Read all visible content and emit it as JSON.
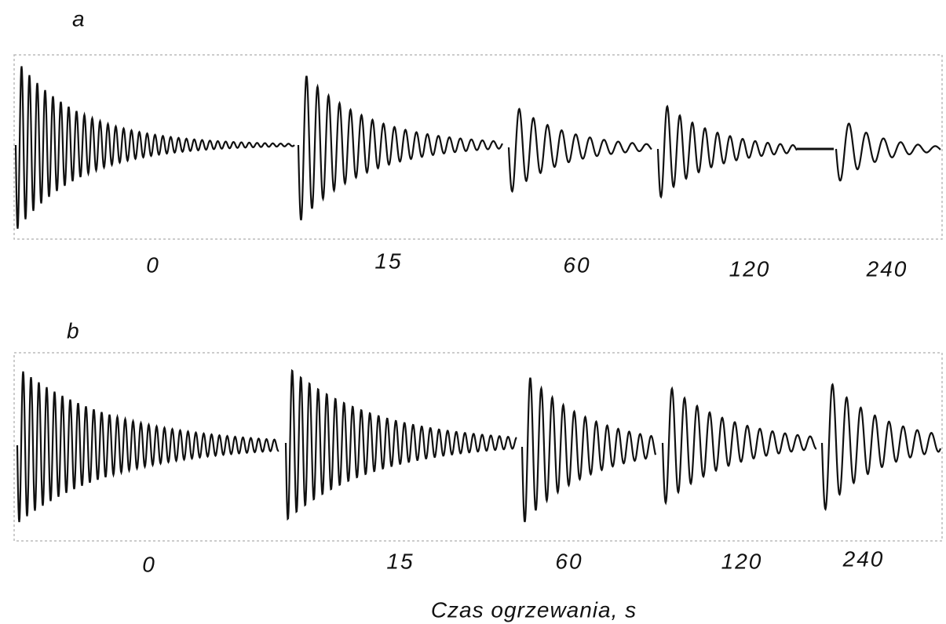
{
  "panels": [
    {
      "label": "a",
      "times": [
        "0",
        "15",
        "60",
        "120",
        "240"
      ]
    },
    {
      "label": "b",
      "times": [
        "0",
        "15",
        "60",
        "120",
        "240"
      ]
    }
  ],
  "x_axis_label": "Czas ogrzewania, s"
}
